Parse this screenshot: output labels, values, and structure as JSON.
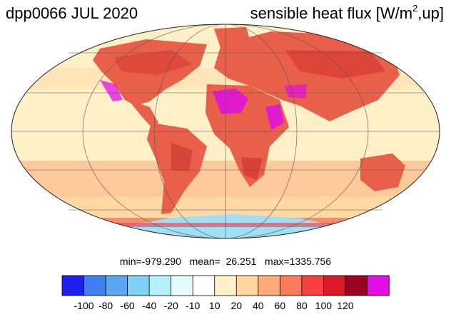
{
  "header": {
    "title_left": "dpp0066 JUL 2020",
    "title_right_main": "sensible heat flux [W/m",
    "title_right_sup": "2",
    "title_right_end": ",up]"
  },
  "stats": {
    "text": "min=-979.290   mean=  26.251   max=1335.756"
  },
  "colorbar": {
    "colors": [
      "#2020ee",
      "#3f7ff0",
      "#5aa6f0",
      "#7fd0f5",
      "#b5f0f8",
      "#e4fbfd",
      "#ffffff",
      "#fff0c8",
      "#ffd5a0",
      "#ffaa78",
      "#ff7a5a",
      "#f54040",
      "#d81a28",
      "#9e0020",
      "#e10ee6"
    ],
    "tick_labels": [
      "-100",
      "-80",
      "-60",
      "-40",
      "-20",
      "-10",
      "10",
      "20",
      "40",
      "60",
      "80",
      "100",
      "120"
    ]
  },
  "map": {
    "projection": "Mollweide",
    "ocean_color": "#fff0c8",
    "land_color": "#e8604a",
    "hot_color": "#e10ee6",
    "cold_color": "#9fdff5"
  }
}
